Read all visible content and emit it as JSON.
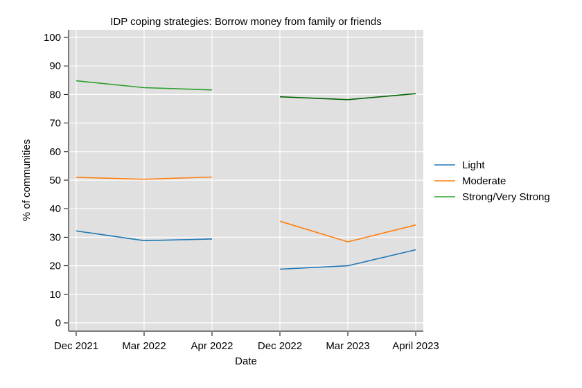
{
  "chart_data": {
    "type": "line",
    "title": "IDP coping strategies: Borrow money from family or friends",
    "xlabel": "Date",
    "ylabel": "% of communities",
    "categories": [
      "Dec 2021",
      "Mar 2022",
      "Apr 2022",
      "Dec 2022",
      "Mar 2023",
      "April 2023"
    ],
    "y_ticks": [
      "0",
      "10",
      "20",
      "30",
      "40",
      "50",
      "60",
      "70",
      "80",
      "90",
      "100"
    ],
    "ylim": [
      0,
      100
    ],
    "grid": true,
    "legend_position": "right",
    "background_color": "#e0e0e0",
    "series": [
      {
        "name": "Light",
        "color": "#1f77b4",
        "segments": [
          {
            "indices": [
              0,
              1,
              2
            ],
            "values": [
              32.2,
              28.8,
              29.4
            ],
            "color": "#1f77b4"
          },
          {
            "indices": [
              3,
              4,
              5
            ],
            "values": [
              18.8,
              20.0,
              25.6
            ],
            "color": "#1f77b4"
          }
        ]
      },
      {
        "name": "Moderate",
        "color": "#ff7f0e",
        "segments": [
          {
            "indices": [
              0,
              1,
              2
            ],
            "values": [
              51.0,
              50.3,
              51.1
            ],
            "color": "#ff7f0e"
          },
          {
            "indices": [
              3,
              4,
              5
            ],
            "values": [
              35.6,
              28.4,
              34.3
            ],
            "color": "#ff7f0e"
          }
        ]
      },
      {
        "name": "Strong/Very Strong",
        "color": "#2ca02c",
        "segments": [
          {
            "indices": [
              0,
              1,
              2
            ],
            "values": [
              84.8,
              82.4,
              81.6
            ],
            "color": "#2ca02c"
          },
          {
            "indices": [
              3,
              4,
              5
            ],
            "values": [
              79.2,
              78.2,
              80.3
            ],
            "color": "#006400"
          }
        ]
      }
    ]
  }
}
